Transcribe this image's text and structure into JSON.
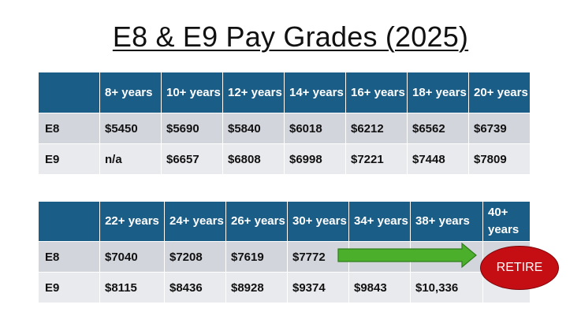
{
  "title": "E8 & E9 Pay Grades (2025)",
  "table1": {
    "headers": [
      "",
      "8+ years",
      "10+ years",
      "12+ years",
      "14+ years",
      "16+ years",
      "18+ years",
      "20+ years"
    ],
    "rows": [
      {
        "label": "E8",
        "values": [
          "$5450",
          "$5690",
          "$5840",
          "$6018",
          "$6212",
          "$6562",
          "$6739"
        ]
      },
      {
        "label": "E9",
        "values": [
          "n/a",
          "$6657",
          "$6808",
          "$6998",
          "$7221",
          "$7448",
          "$7809"
        ]
      }
    ]
  },
  "table2": {
    "headers": [
      "",
      "22+ years",
      "24+ years",
      "26+ years",
      "30+ years",
      "34+ years",
      "38+ years",
      "40+ years"
    ],
    "rows": [
      {
        "label": "E8",
        "values": [
          "$7040",
          "$7208",
          "$7619",
          "$7772",
          "",
          "",
          ""
        ]
      },
      {
        "label": "E9",
        "values": [
          "$8115",
          "$8436",
          "$8928",
          "$9374",
          "$9843",
          "$10,336",
          ""
        ]
      }
    ]
  },
  "retire_label": "RETIRE",
  "colors": {
    "header_bg": "#1a5d86",
    "row_dark": "#d2d5dc",
    "row_light": "#e9eaee",
    "arrow": "#4caf2c",
    "retire": "#c40e14"
  }
}
